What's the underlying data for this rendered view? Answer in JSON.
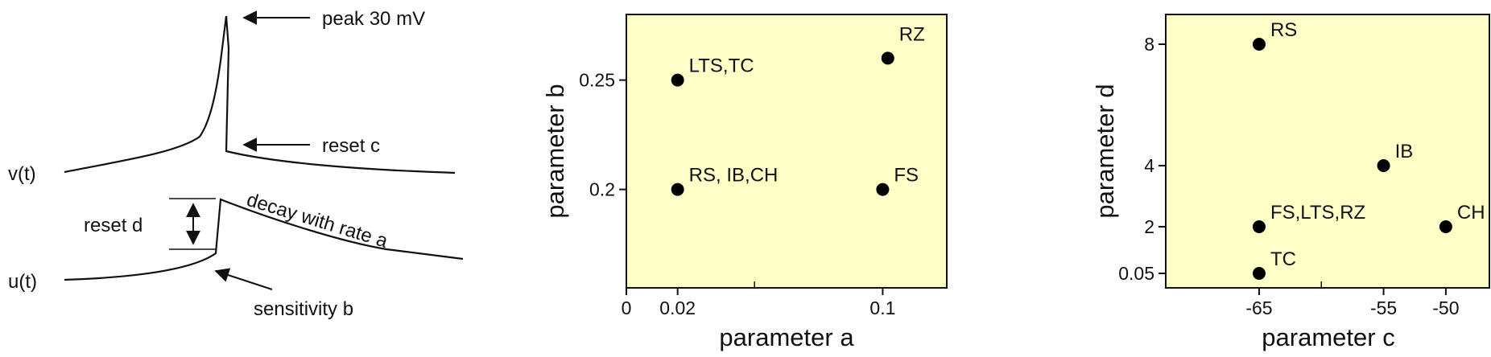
{
  "diagram": {
    "v_label": "v(t)",
    "u_label": "u(t)",
    "peak_label": "peak 30 mV",
    "reset_c_label": "reset  c",
    "reset_d_label": "reset  d",
    "decay_label": "decay with  rate  a",
    "sensitivity_label": "sensitivity  b"
  },
  "chart_data": [
    {
      "type": "scatter",
      "title": "",
      "xlabel": "parameter a",
      "ylabel": "parameter b",
      "xlim": [
        0,
        0.125
      ],
      "ylim": [
        0.155,
        0.28
      ],
      "xticks": [
        {
          "value": 0,
          "label": "0"
        },
        {
          "value": 0.02,
          "label": "0.02"
        },
        {
          "value": 0.1,
          "label": "0.1"
        }
      ],
      "yticks": [
        {
          "value": 0.2,
          "label": "0.2"
        },
        {
          "value": 0.25,
          "label": "0.25"
        }
      ],
      "minor_xticks": [
        0.05
      ],
      "points": [
        {
          "x": 0.02,
          "y": 0.25,
          "label": "LTS,TC"
        },
        {
          "x": 0.102,
          "y": 0.26,
          "label": "RZ"
        },
        {
          "x": 0.02,
          "y": 0.2,
          "label": "RS, IB,CH"
        },
        {
          "x": 0.1,
          "y": 0.2,
          "label": "FS"
        }
      ],
      "background": "#ffffc8",
      "grid": false
    },
    {
      "type": "scatter",
      "title": "",
      "xlabel": "parameter c",
      "ylabel": "parameter d",
      "xlim": [
        -72.5,
        -46.5
      ],
      "yticks": [
        {
          "value": 0.05,
          "label": "0.05"
        },
        {
          "value": 2,
          "label": "2"
        },
        {
          "value": 4,
          "label": "4"
        },
        {
          "value": 8,
          "label": "8"
        }
      ],
      "xticks": [
        {
          "value": -65,
          "label": "-65"
        },
        {
          "value": -55,
          "label": "-55"
        },
        {
          "value": -50,
          "label": "-50"
        }
      ],
      "minor_xticks": [
        -60
      ],
      "points": [
        {
          "x": -65,
          "y": 8,
          "label": "RS"
        },
        {
          "x": -55,
          "y": 4,
          "label": "IB"
        },
        {
          "x": -65,
          "y": 2,
          "label": "FS,LTS,RZ"
        },
        {
          "x": -50,
          "y": 2,
          "label": "CH"
        },
        {
          "x": -65,
          "y": 0.05,
          "label": "TC"
        }
      ],
      "background": "#ffffc8",
      "grid": false
    }
  ]
}
